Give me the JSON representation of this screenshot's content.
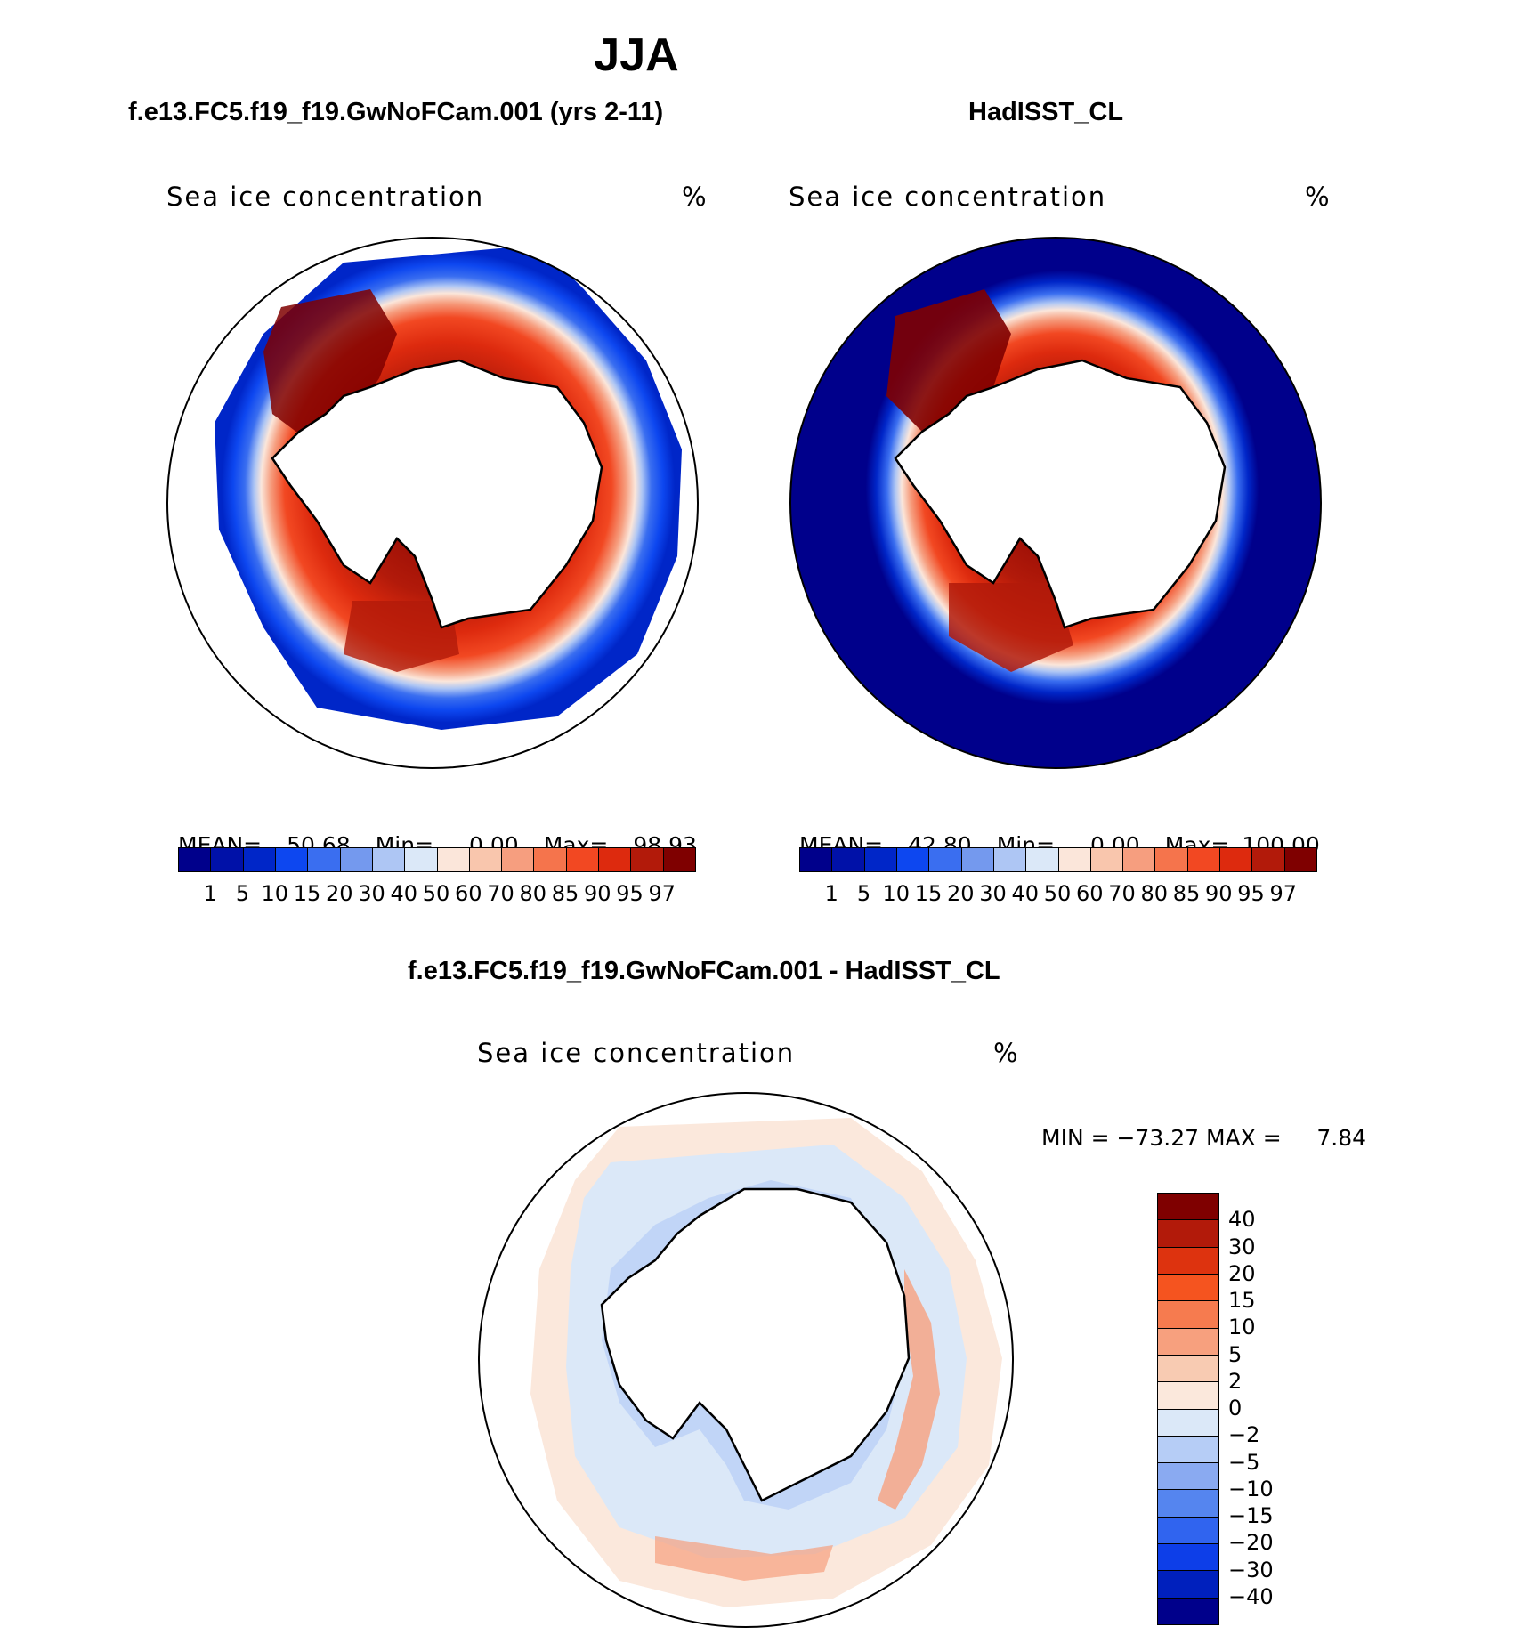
{
  "page": {
    "title": "JJA",
    "panel_left_title": "f.e13.FC5.f19_f19.GwNoFCam.001 (yrs 2-11)",
    "panel_right_title": "HadISST_CL",
    "panel_bottom_title": "f.e13.FC5.f19_f19.GwNoFCam.001 - HadISST_CL"
  },
  "panels": {
    "left": {
      "variable": "Sea ice concentration",
      "units": "%",
      "stats": {
        "mean_label": "MEAN=",
        "mean": "50.68",
        "min_label": "Min=",
        "min": "0.00",
        "max_label": "Max=",
        "max": "98.93"
      }
    },
    "right": {
      "variable": "Sea ice concentration",
      "units": "%",
      "stats": {
        "mean_label": "MEAN=",
        "mean": "42.80",
        "min_label": "Min=",
        "min": "0.00",
        "max_label": "Max=",
        "max": "100.00"
      }
    },
    "bottom": {
      "variable": "Sea ice concentration",
      "units": "%",
      "stats_text": "MIN = −73.27 MAX =     7.84"
    }
  },
  "colorbars": {
    "concentration": {
      "colors": [
        "#00008b",
        "#0011a8",
        "#0026c8",
        "#0d47f0",
        "#3a6ef0",
        "#7499ee",
        "#aec6f4",
        "#dbe8f8",
        "#fbe6da",
        "#f9c6ad",
        "#f69e7f",
        "#f5744c",
        "#f24822",
        "#dd2a0e",
        "#b21a0a",
        "#7f0000"
      ],
      "labels": [
        "1",
        "5",
        "10",
        "15",
        "20",
        "30",
        "40",
        "50",
        "60",
        "70",
        "80",
        "85",
        "90",
        "95",
        "97"
      ]
    },
    "difference": {
      "colors": [
        "#7f0000",
        "#b21a0a",
        "#dd330f",
        "#f5541f",
        "#f67b4f",
        "#f7a07e",
        "#f8cbb2",
        "#fbe8dc",
        "#dbe8f8",
        "#b6cdf6",
        "#8aaaf1",
        "#5585ef",
        "#3064ef",
        "#0d3ee8",
        "#0020bd",
        "#00008b"
      ],
      "labels": [
        "40",
        "30",
        "20",
        "15",
        "10",
        "5",
        "2",
        "0",
        "−2",
        "−5",
        "−10",
        "−15",
        "−20",
        "−30",
        "−40"
      ]
    }
  }
}
